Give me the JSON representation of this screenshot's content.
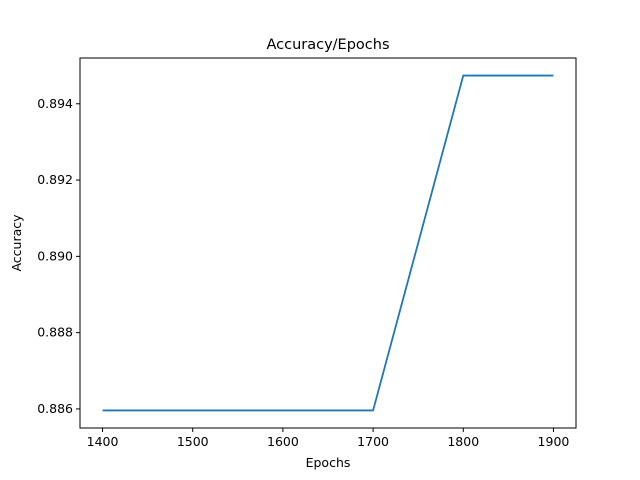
{
  "chart_data": {
    "type": "line",
    "title": "Accuracy/Epochs",
    "xlabel": "Epochs",
    "ylabel": "Accuracy",
    "xlim": [
      1375,
      1925
    ],
    "ylim": [
      0.8855,
      0.8952
    ],
    "xticks": [
      1400,
      1500,
      1600,
      1700,
      1800,
      1900
    ],
    "yticks": [
      0.886,
      0.888,
      0.89,
      0.892,
      0.894
    ],
    "xtick_labels": [
      "1400",
      "1500",
      "1600",
      "1700",
      "1800",
      "1900"
    ],
    "ytick_labels": [
      "0.886",
      "0.888",
      "0.890",
      "0.892",
      "0.894"
    ],
    "grid": false,
    "series": [
      {
        "color": "#1f77b4",
        "x": [
          1400,
          1500,
          1600,
          1700,
          1800,
          1900
        ],
        "y": [
          0.88596,
          0.88596,
          0.88596,
          0.88596,
          0.89474,
          0.89474
        ]
      }
    ]
  }
}
